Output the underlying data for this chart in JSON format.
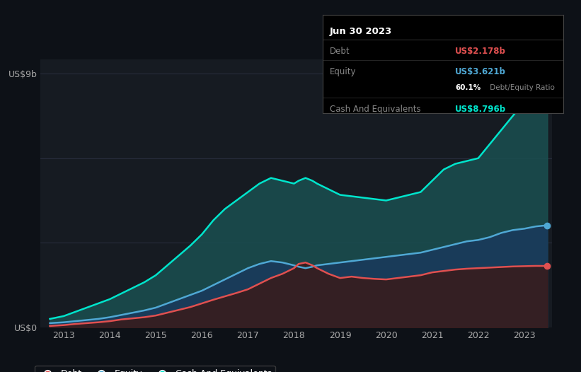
{
  "background_color": "#0d1117",
  "plot_bg_color": "#161b22",
  "title": "Jun 30 2023",
  "ylabel": "US$9b",
  "y0_label": "US$0",
  "x_ticks": [
    2013,
    2014,
    2015,
    2016,
    2017,
    2018,
    2019,
    2020,
    2021,
    2022,
    2023
  ],
  "debt_color": "#e05050",
  "equity_color": "#4fa8d4",
  "cash_color": "#00e5cc",
  "cash_fill_color": "#1a5050",
  "equity_fill_color": "#1a3a5c",
  "debt_fill_color": "#3a1a1a",
  "debt_label": "Debt",
  "equity_label": "Equity",
  "cash_label": "Cash And Equivalents",
  "tooltip_debt_val": "US$2.178b",
  "tooltip_equity_val": "US$3.621b",
  "tooltip_ratio": "60.1%",
  "tooltip_ratio_text": " Debt/Equity Ratio",
  "tooltip_cash_val": "US$8.796b",
  "xlim": [
    2012.5,
    2023.6
  ],
  "ylim": [
    0,
    9.5
  ],
  "years": [
    2012.7,
    2013.0,
    2013.25,
    2013.5,
    2013.75,
    2014.0,
    2014.25,
    2014.5,
    2014.75,
    2015.0,
    2015.25,
    2015.5,
    2015.75,
    2016.0,
    2016.25,
    2016.5,
    2016.75,
    2017.0,
    2017.25,
    2017.5,
    2017.75,
    2018.0,
    2018.1,
    2018.25,
    2018.4,
    2018.5,
    2018.75,
    2019.0,
    2019.25,
    2019.5,
    2019.75,
    2020.0,
    2020.25,
    2020.5,
    2020.75,
    2021.0,
    2021.25,
    2021.5,
    2021.75,
    2022.0,
    2022.25,
    2022.5,
    2022.75,
    2023.0,
    2023.25,
    2023.5
  ],
  "debt": [
    0.05,
    0.08,
    0.12,
    0.15,
    0.18,
    0.22,
    0.28,
    0.32,
    0.36,
    0.42,
    0.52,
    0.62,
    0.72,
    0.85,
    0.98,
    1.1,
    1.22,
    1.35,
    1.55,
    1.75,
    1.9,
    2.1,
    2.25,
    2.3,
    2.2,
    2.1,
    1.9,
    1.75,
    1.8,
    1.75,
    1.72,
    1.7,
    1.75,
    1.8,
    1.85,
    1.95,
    2.0,
    2.05,
    2.08,
    2.1,
    2.12,
    2.14,
    2.16,
    2.17,
    2.18,
    2.178
  ],
  "equity": [
    0.15,
    0.18,
    0.22,
    0.26,
    0.3,
    0.36,
    0.44,
    0.52,
    0.6,
    0.7,
    0.85,
    1.0,
    1.15,
    1.3,
    1.5,
    1.7,
    1.9,
    2.1,
    2.25,
    2.35,
    2.3,
    2.2,
    2.15,
    2.1,
    2.15,
    2.2,
    2.25,
    2.3,
    2.35,
    2.4,
    2.45,
    2.5,
    2.55,
    2.6,
    2.65,
    2.75,
    2.85,
    2.95,
    3.05,
    3.1,
    3.2,
    3.35,
    3.45,
    3.5,
    3.58,
    3.621
  ],
  "cash": [
    0.3,
    0.4,
    0.55,
    0.7,
    0.85,
    1.0,
    1.2,
    1.4,
    1.6,
    1.85,
    2.2,
    2.55,
    2.9,
    3.3,
    3.8,
    4.2,
    4.5,
    4.8,
    5.1,
    5.3,
    5.2,
    5.1,
    5.2,
    5.3,
    5.2,
    5.1,
    4.9,
    4.7,
    4.65,
    4.6,
    4.55,
    4.5,
    4.6,
    4.7,
    4.8,
    5.2,
    5.6,
    5.8,
    5.9,
    6.0,
    6.5,
    7.0,
    7.5,
    8.0,
    8.4,
    8.796
  ]
}
